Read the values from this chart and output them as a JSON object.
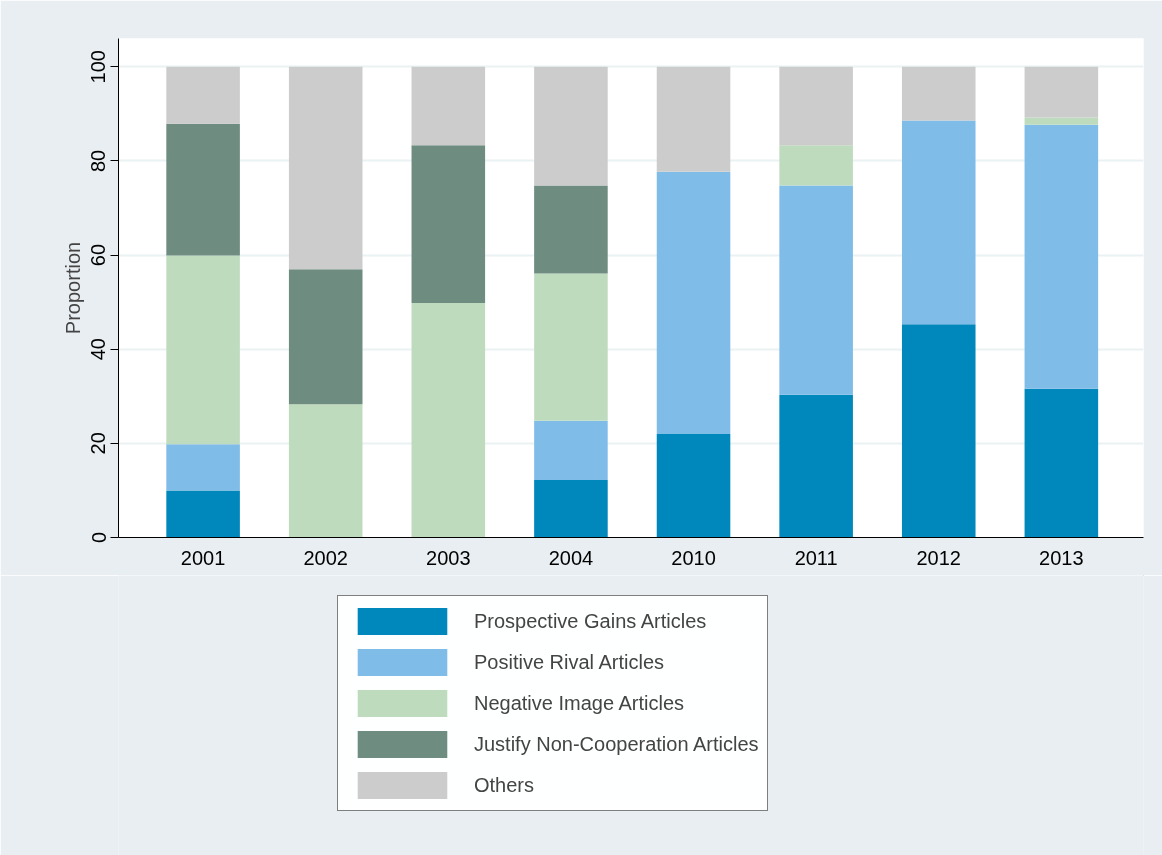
{
  "chart_data": {
    "type": "bar",
    "stacked": true,
    "ylabel": "Proportion",
    "categories": [
      "2001",
      "2002",
      "2003",
      "2004",
      "2010",
      "2011",
      "2012",
      "2013"
    ],
    "series": [
      {
        "name": "Prospective Gains Articles",
        "color": "#0087bc",
        "values": [
          10,
          0,
          0,
          12.2,
          22,
          30.3,
          45.3,
          31.6
        ]
      },
      {
        "name": "Positive Rival Articles",
        "color": "#80bce8",
        "values": [
          9.8,
          0,
          0,
          12.6,
          55.7,
          44.5,
          43.3,
          56.1
        ]
      },
      {
        "name": "Negative Image Articles",
        "color": "#bedcbd",
        "values": [
          40.1,
          28.3,
          49.8,
          31.3,
          0,
          8.5,
          0,
          1.5
        ]
      },
      {
        "name": "Justify Non-Cooperation Articles",
        "color": "#6f8c80",
        "values": [
          28,
          28.7,
          33.5,
          18.7,
          0,
          0,
          0,
          0
        ]
      },
      {
        "name": "Others",
        "color": "#cccccc",
        "values": [
          12.1,
          43,
          16.7,
          25.2,
          22.3,
          16.7,
          11.4,
          10.8
        ]
      }
    ],
    "ylim": [
      0,
      106
    ],
    "yticks": [
      0,
      20,
      40,
      60,
      80,
      100
    ],
    "grid": "y",
    "legend": "bottom"
  }
}
